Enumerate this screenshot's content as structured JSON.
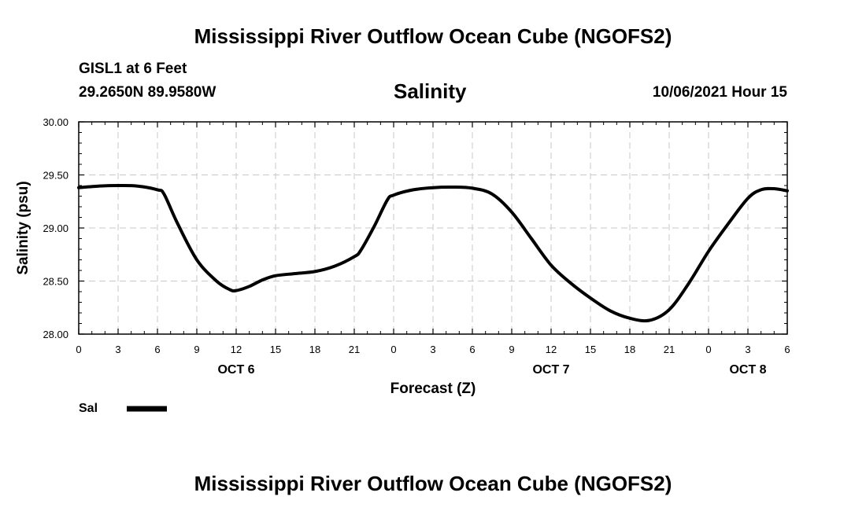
{
  "header": {
    "title": "Mississippi River Outflow Ocean Cube (NGOFS2)",
    "station": "GISL1 at 6 Feet",
    "coords": "29.2650N  89.9580W",
    "variable": "Salinity",
    "timestamp": "10/06/2021 Hour 15"
  },
  "footer": {
    "title": "Mississippi River Outflow Ocean Cube (NGOFS2)"
  },
  "legend": {
    "label": "Sal"
  },
  "chart_data": {
    "type": "line",
    "title": "Salinity",
    "xlabel": "Forecast (Z)",
    "ylabel": "Salinity (psu)",
    "xlim": [
      0,
      54
    ],
    "ylim": [
      28.0,
      30.0
    ],
    "yticks": [
      28.0,
      28.5,
      29.0,
      29.5,
      30.0
    ],
    "ytick_labels": [
      "28.00",
      "28.50",
      "29.00",
      "29.50",
      "30.00"
    ],
    "xticks": [
      0,
      3,
      6,
      9,
      12,
      15,
      18,
      21,
      24,
      27,
      30,
      33,
      36,
      39,
      42,
      45,
      48,
      51,
      54
    ],
    "xtick_labels": [
      "0",
      "3",
      "6",
      "9",
      "12",
      "15",
      "18",
      "21",
      "0",
      "3",
      "6",
      "9",
      "12",
      "15",
      "18",
      "21",
      "0",
      "3",
      "6"
    ],
    "day_labels": [
      {
        "x": 12,
        "label": "OCT 6"
      },
      {
        "x": 36,
        "label": "OCT 7"
      },
      {
        "x": 51,
        "label": "OCT 8"
      }
    ],
    "grid": true,
    "series": [
      {
        "name": "Sal",
        "x": [
          0,
          1.5,
          3,
          4.5,
          6,
          6.5,
          7.5,
          9,
          10.5,
          11.5,
          12,
          13,
          14,
          15,
          16.5,
          18,
          19.5,
          21,
          21.5,
          22.5,
          23.5,
          24,
          25.5,
          27,
          28.5,
          30,
          31.5,
          33,
          34.5,
          36,
          37.5,
          39,
          40.5,
          42,
          43.5,
          45,
          46.5,
          48,
          49.5,
          51,
          52,
          53,
          54
        ],
        "values": [
          29.38,
          29.395,
          29.4,
          29.395,
          29.36,
          29.32,
          29.05,
          28.7,
          28.5,
          28.42,
          28.41,
          28.45,
          28.51,
          28.55,
          28.57,
          28.59,
          28.64,
          28.73,
          28.79,
          29.01,
          29.26,
          29.31,
          29.36,
          29.38,
          29.385,
          29.375,
          29.32,
          29.15,
          28.9,
          28.65,
          28.48,
          28.34,
          28.22,
          28.15,
          28.13,
          28.23,
          28.48,
          28.78,
          29.04,
          29.28,
          29.36,
          29.37,
          29.35
        ]
      }
    ]
  }
}
